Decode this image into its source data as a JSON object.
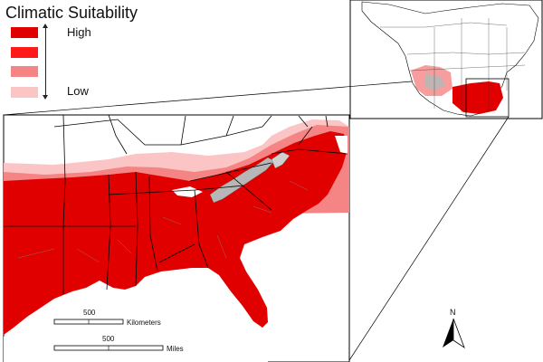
{
  "legend": {
    "title": "Climatic Suitability",
    "high_label": "High",
    "low_label": "Low",
    "classes": [
      "#e10000",
      "#ff1a1a",
      "#f58484",
      "#fcc5c5"
    ]
  },
  "scalebars": {
    "kilometers": {
      "value": "500",
      "unit": "Kilometers"
    },
    "miles": {
      "value": "500",
      "unit": "Miles"
    }
  },
  "north_arrow": {
    "label": "N"
  },
  "colors": {
    "high": "#e10000",
    "medium_high": "#ff1a1a",
    "medium_low": "#f58484",
    "low": "#fcc5c5",
    "unsuitable": "#ffffff",
    "excluded": "#b7b7b7",
    "boundary": "#000000"
  }
}
